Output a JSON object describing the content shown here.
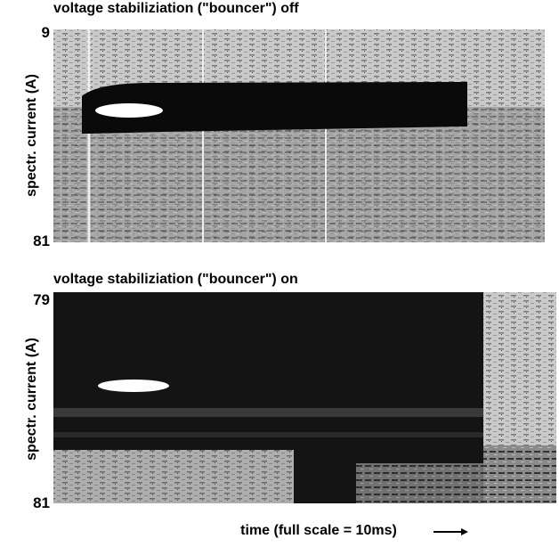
{
  "panels": [
    {
      "title": "voltage stabiliziation (\"bouncer\") off",
      "y_label": "spectr. current (A)",
      "y_top": "9",
      "y_bottom": "81"
    },
    {
      "title": "voltage stabiliziation (\"bouncer\") on",
      "y_label": "spectr. current (A)",
      "y_top": "79",
      "y_bottom": "81"
    }
  ],
  "x_label": "time (full scale = 10ms)"
}
